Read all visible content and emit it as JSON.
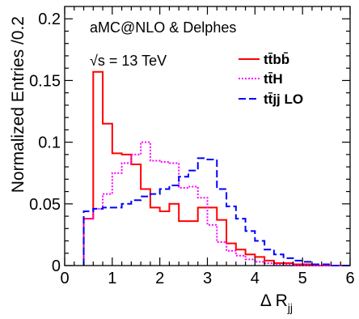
{
  "chart_data": {
    "type": "line",
    "subtype": "step-histogram",
    "xlabel": "Δ R",
    "xlabel_subscript": "jj",
    "ylabel": "Normalized Entries /0.2",
    "xlim": [
      0,
      6
    ],
    "ylim": [
      0,
      0.21
    ],
    "x_ticks": [
      "0",
      "1",
      "2",
      "3",
      "4",
      "5",
      "6"
    ],
    "y_ticks": [
      "0",
      "0.05",
      "0.1",
      "0.15",
      "0.2"
    ],
    "y_tick_values": [
      0,
      0.05,
      0.1,
      0.15,
      0.2
    ],
    "grid": false,
    "legend_position": "top-right",
    "annotations": {
      "generator": "aMC@NLO & Delphes",
      "energy": "√s = 13 TeV"
    },
    "bin_edges": [
      0.4,
      0.6,
      0.8,
      1.0,
      1.2,
      1.4,
      1.6,
      1.8,
      2.0,
      2.2,
      2.4,
      2.6,
      2.8,
      3.0,
      3.2,
      3.4,
      3.6,
      3.8,
      4.0,
      4.2,
      4.4,
      4.6,
      4.8,
      5.0,
      5.2,
      5.4,
      5.6,
      5.8,
      6.0
    ],
    "series": [
      {
        "name": "tt̄bb̄",
        "color": "#ff0000",
        "style": "solid",
        "values": [
          0.038,
          0.157,
          0.115,
          0.091,
          0.09,
          0.082,
          0.062,
          0.047,
          0.044,
          0.05,
          0.036,
          0.036,
          0.047,
          0.047,
          0.037,
          0.018,
          0.013,
          0.009,
          0.007,
          0.004,
          0.002,
          0.002,
          0.001,
          0.001,
          0.0,
          0.0,
          0.0,
          0.0
        ]
      },
      {
        "name": "tt̄H",
        "color": "#ff00ff",
        "style": "dotted",
        "values": [
          0.038,
          0.046,
          0.058,
          0.075,
          0.083,
          0.09,
          0.1,
          0.085,
          0.084,
          0.083,
          0.063,
          0.064,
          0.055,
          0.033,
          0.019,
          0.012,
          0.008,
          0.005,
          0.003,
          0.002,
          0.001,
          0.001,
          0.0,
          0.0,
          0.0,
          0.0,
          0.0,
          0.0
        ]
      },
      {
        "name": "tt̄jj LO",
        "color": "#0000ff",
        "style": "dashed",
        "values": [
          0.044,
          0.046,
          0.047,
          0.047,
          0.05,
          0.053,
          0.056,
          0.058,
          0.062,
          0.065,
          0.072,
          0.077,
          0.087,
          0.086,
          0.062,
          0.048,
          0.038,
          0.028,
          0.02,
          0.013,
          0.009,
          0.006,
          0.004,
          0.003,
          0.001,
          0.001,
          0.0,
          0.0
        ]
      }
    ]
  }
}
